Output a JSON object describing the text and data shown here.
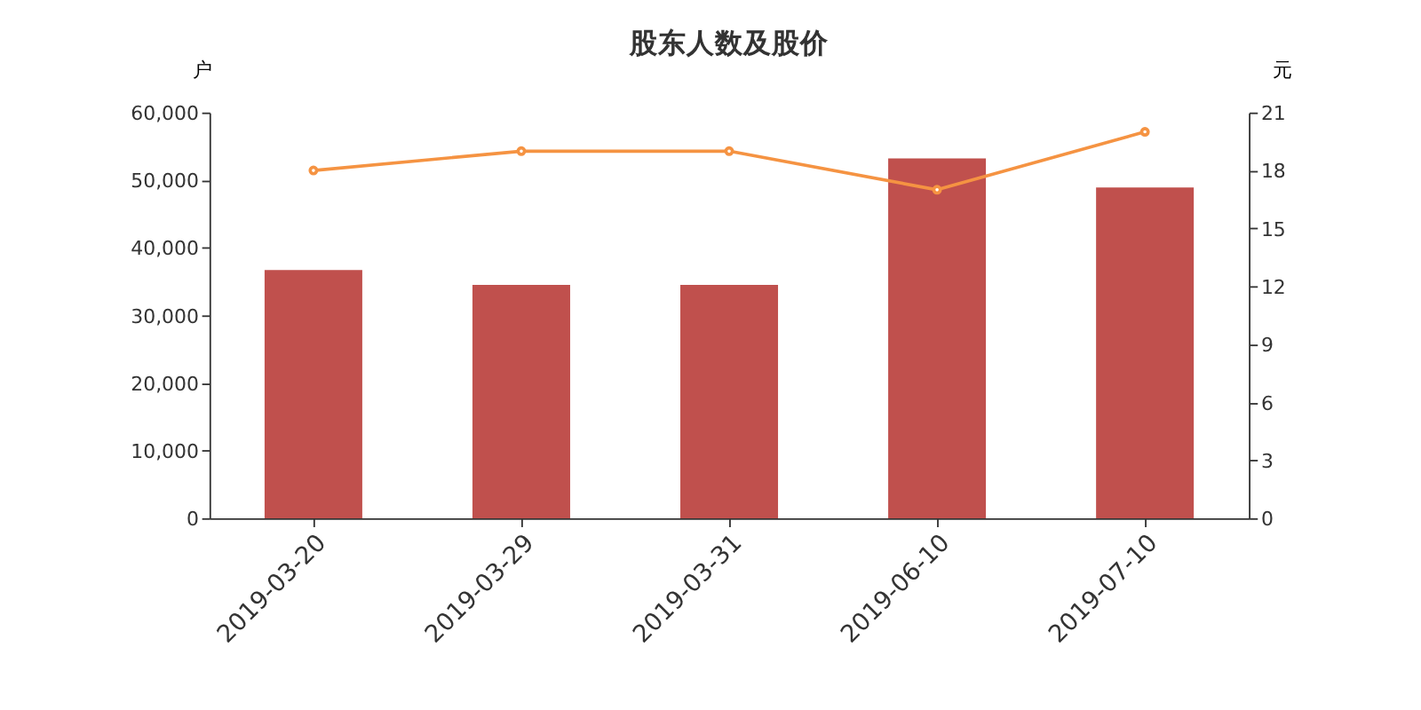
{
  "chart_data": {
    "type": "bar",
    "title": "股东人数及股价",
    "ylabel": "户",
    "y2label": "元",
    "categories": [
      "2019-03-20",
      "2019-03-29",
      "2019-03-31",
      "2019-06-10",
      "2019-07-10"
    ],
    "series": [
      {
        "color": "#c0504d",
        "values": [
          36700,
          34500,
          34500,
          53200,
          48900
        ]
      },
      {
        "type": "line",
        "axis": "y2",
        "color": "#f59342",
        "values": [
          18.0,
          19.0,
          19.0,
          17.0,
          20.0
        ],
        "marker": "circle"
      }
    ],
    "ylim": [
      0,
      60000
    ],
    "yticks": [
      0,
      {
        "value": 10000,
        "label": "10,000"
      },
      {
        "value": 20000,
        "label": "20,000"
      },
      {
        "value": 30000,
        "label": "30,000"
      },
      {
        "value": 40000,
        "label": "40,000"
      },
      {
        "value": 50000,
        "label": "50,000"
      },
      {
        "value": 60000,
        "label": "60,000"
      }
    ],
    "y2lim": [
      0,
      21
    ],
    "y2ticks": [
      0,
      3,
      6,
      9,
      12,
      15,
      18,
      21
    ],
    "grid": false
  }
}
